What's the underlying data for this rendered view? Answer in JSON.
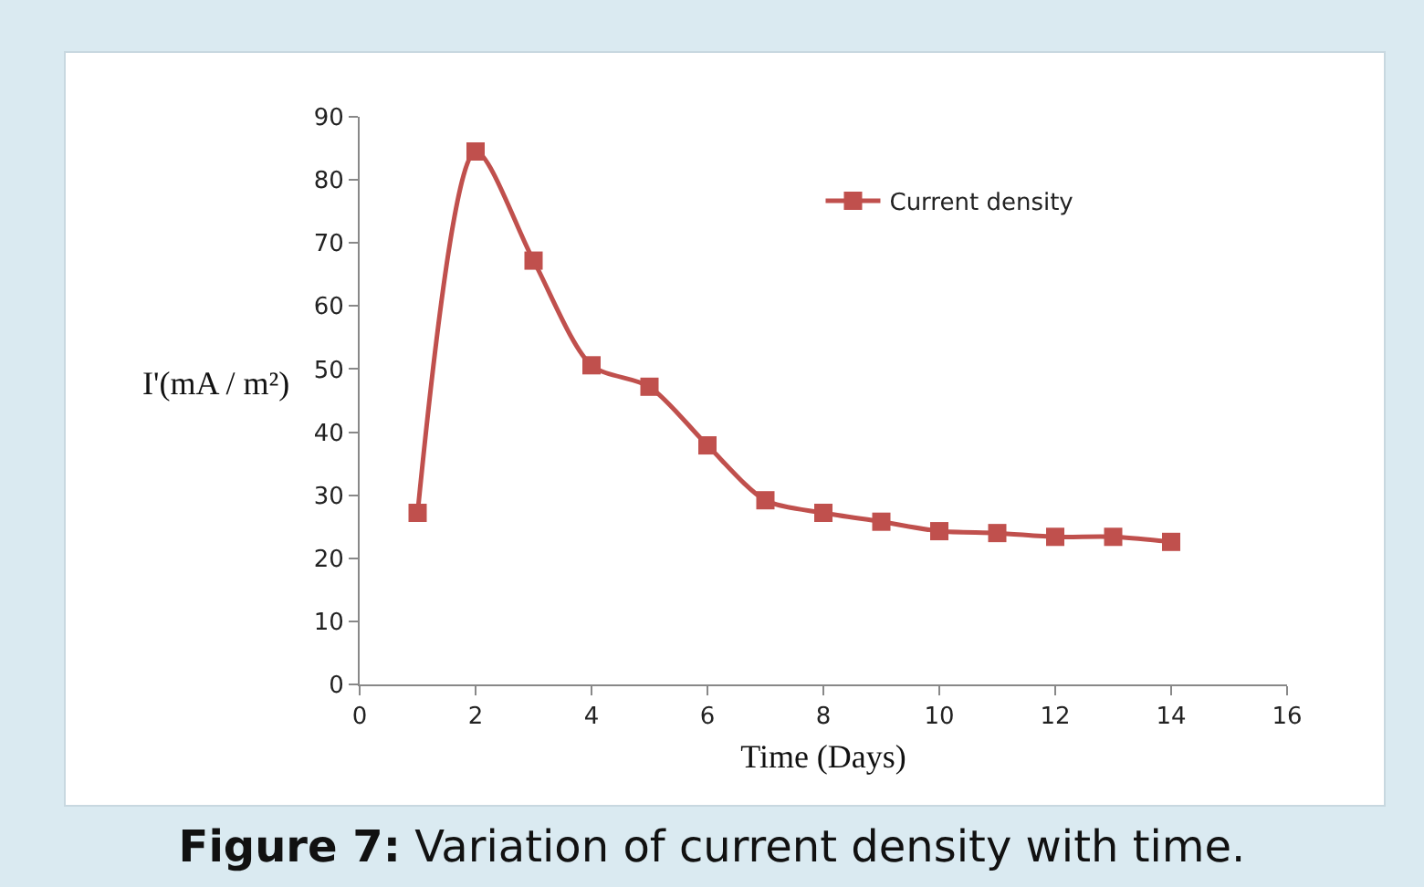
{
  "chart_data": {
    "type": "line",
    "xlabel": "Time (Days)",
    "ylabel": "I'(mA / m²)",
    "x": [
      1,
      2,
      3,
      4,
      5,
      6,
      7,
      8,
      9,
      10,
      11,
      12,
      13,
      14
    ],
    "series": [
      {
        "name": "Current density",
        "color": "#c0504d",
        "values": [
          27.2,
          84.5,
          67.2,
          50.6,
          47.2,
          37.9,
          29.2,
          27.2,
          25.8,
          24.3,
          24,
          23.4,
          23.4,
          22.6
        ]
      }
    ],
    "xlim": [
      0,
      16
    ],
    "xticks": [
      0,
      2,
      4,
      6,
      8,
      10,
      12,
      14,
      16
    ],
    "ylim": [
      0,
      90
    ],
    "yticks": [
      0,
      10,
      20,
      30,
      40,
      50,
      60,
      70,
      80,
      90
    ],
    "grid": false,
    "legend": "top right",
    "marker": "square",
    "line_style": "solid",
    "annotations": [
      "Figure 7: Variation of current density with time."
    ]
  }
}
